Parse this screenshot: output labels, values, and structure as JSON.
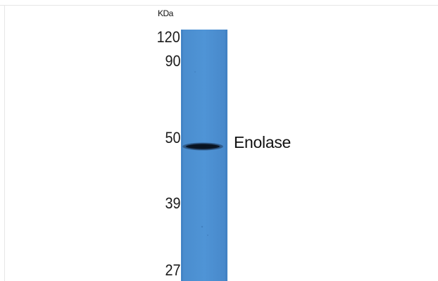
{
  "unit_label": "KDa",
  "markers": [
    "120",
    "90",
    "50",
    "39",
    "27"
  ],
  "band_label": "Enolase",
  "colors": {
    "lane_blue": "#4a8fd1",
    "band_dark": "#0f1e33"
  }
}
